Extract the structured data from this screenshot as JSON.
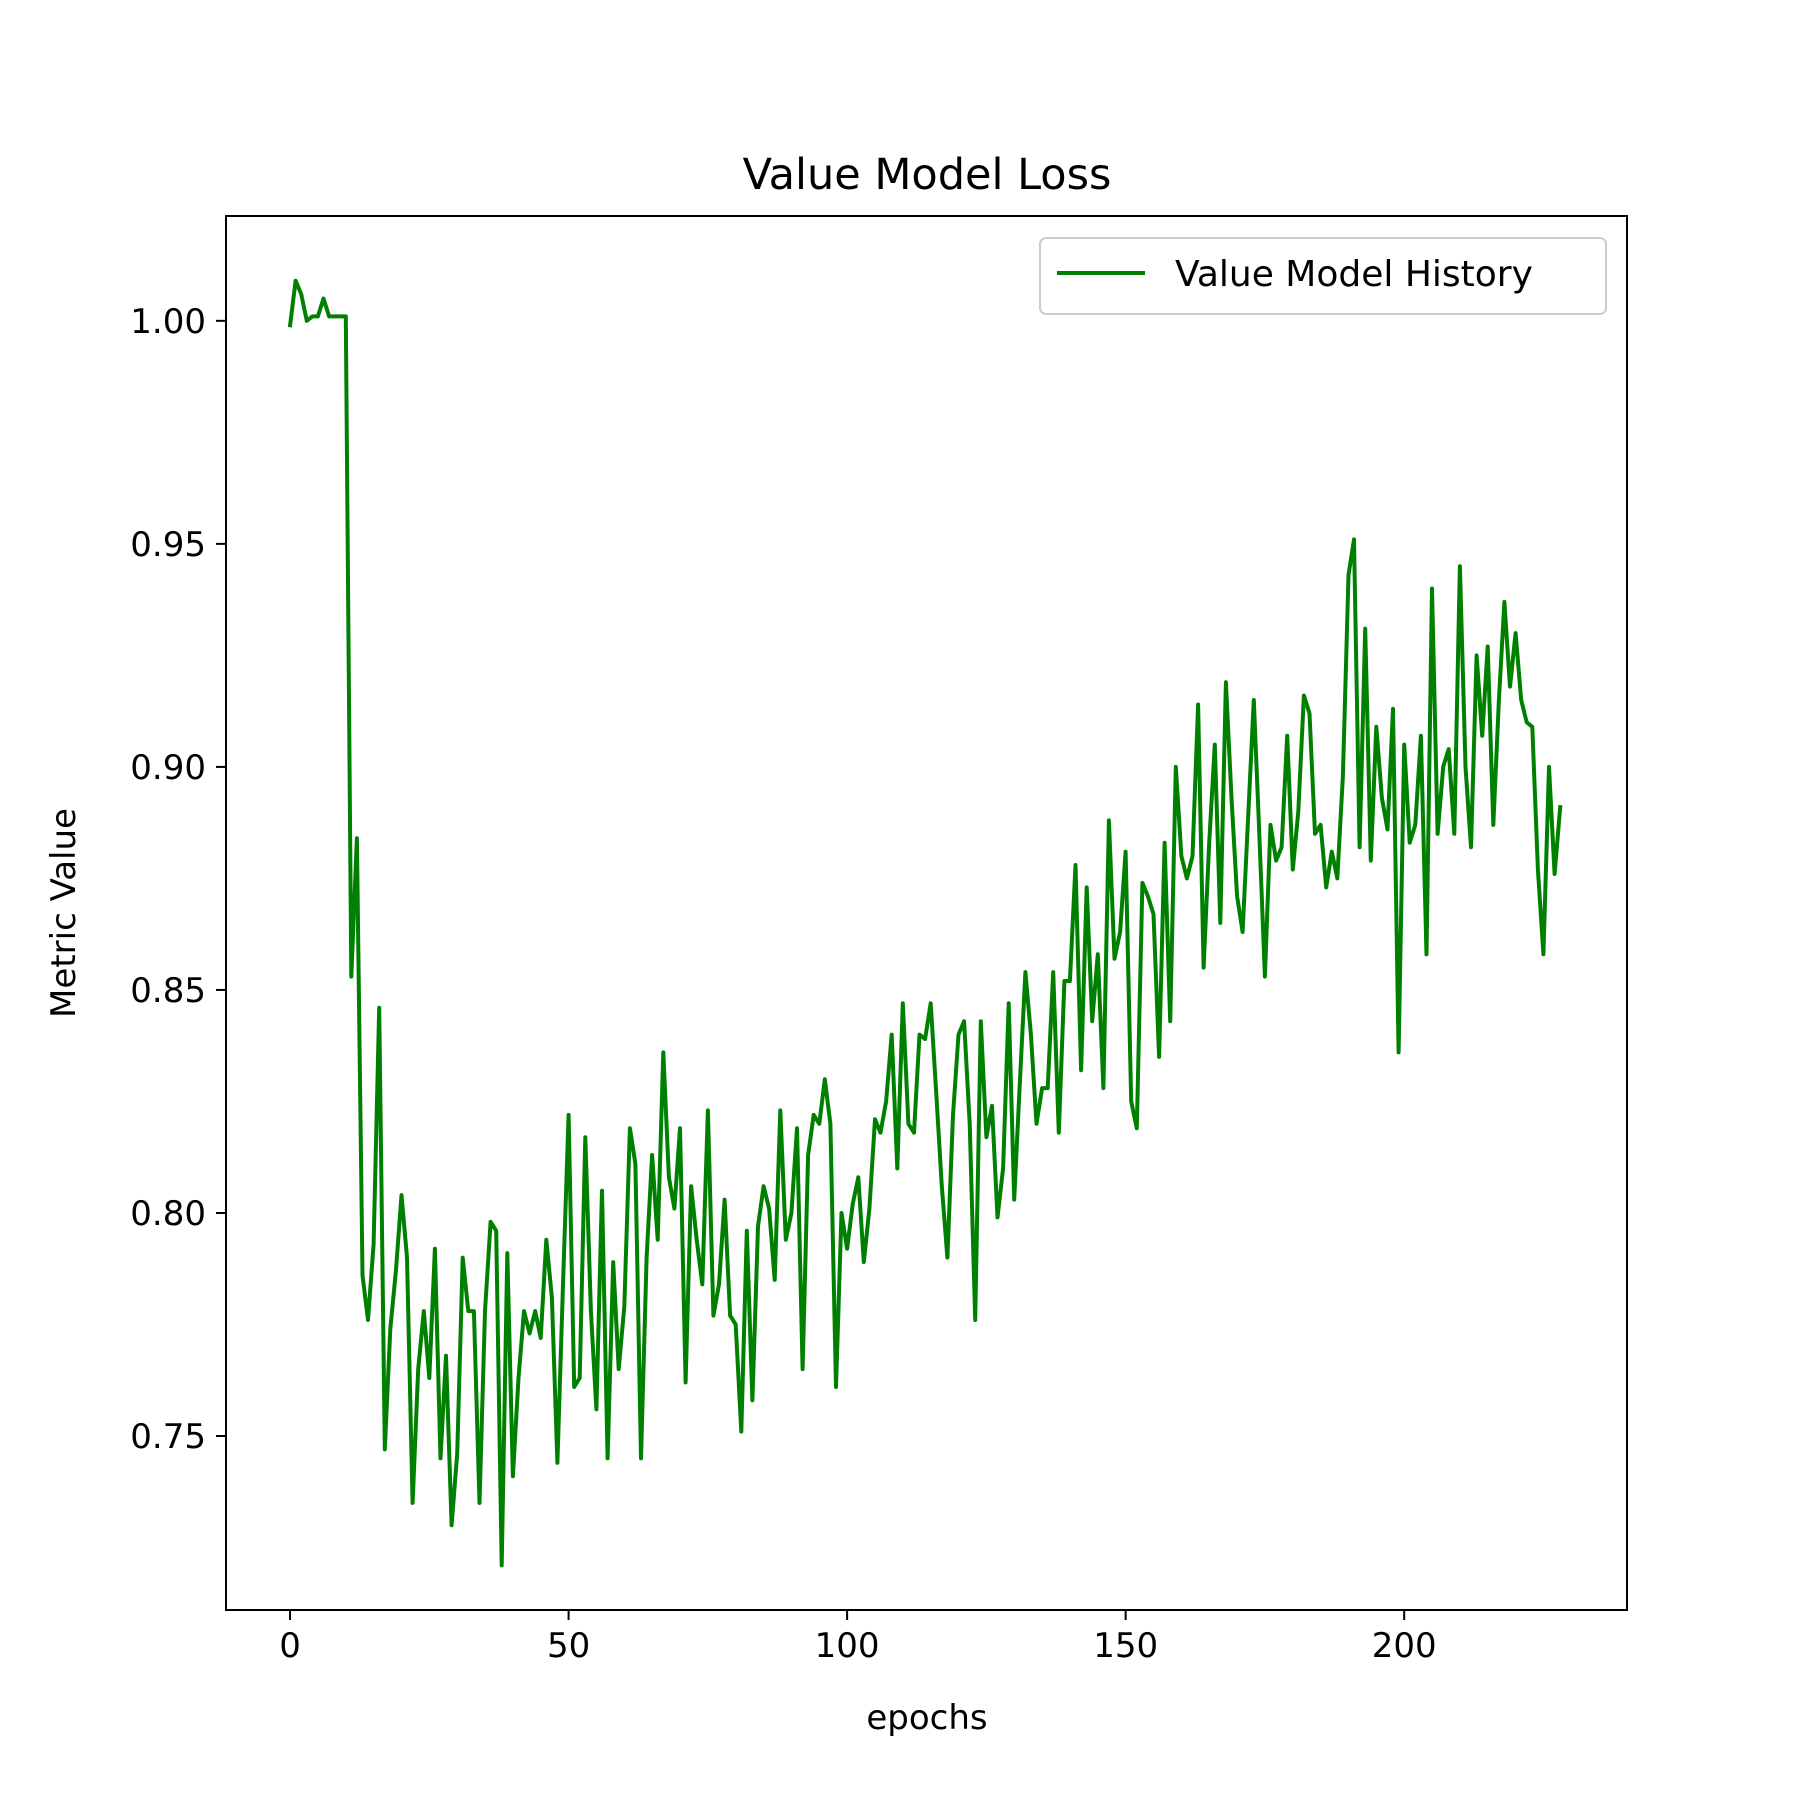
{
  "chart_data": {
    "type": "line",
    "title": "Value Model Loss",
    "xlabel": "epochs",
    "ylabel": "Metric Value",
    "xlim": [
      -11.5,
      240
    ],
    "ylim": [
      0.711,
      1.0235
    ],
    "xticks": [
      0,
      50,
      100,
      150,
      200
    ],
    "xtick_labels": [
      "0",
      "50",
      "100",
      "150",
      "200"
    ],
    "yticks": [
      0.75,
      0.8,
      0.85,
      0.9,
      0.95,
      1.0
    ],
    "ytick_labels": [
      "0.75",
      "0.80",
      "0.85",
      "0.90",
      "0.95",
      "1.00"
    ],
    "grid": false,
    "legend_position": "top-right",
    "series": [
      {
        "name": "Value Model History",
        "color": "#008000",
        "x": [
          0,
          1,
          2,
          3,
          4,
          5,
          6,
          7,
          8,
          9,
          10,
          11,
          12,
          13,
          14,
          15,
          16,
          17,
          18,
          19,
          20,
          21,
          22,
          23,
          24,
          25,
          26,
          27,
          28,
          29,
          30,
          31,
          32,
          33,
          34,
          35,
          36,
          37,
          38,
          39,
          40,
          41,
          42,
          43,
          44,
          45,
          46,
          47,
          48,
          49,
          50,
          51,
          52,
          53,
          54,
          55,
          56,
          57,
          58,
          59,
          60,
          61,
          62,
          63,
          64,
          65,
          66,
          67,
          68,
          69,
          70,
          71,
          72,
          73,
          74,
          75,
          76,
          77,
          78,
          79,
          80,
          81,
          82,
          83,
          84,
          85,
          86,
          87,
          88,
          89,
          90,
          91,
          92,
          93,
          94,
          95,
          96,
          97,
          98,
          99,
          100,
          101,
          102,
          103,
          104,
          105,
          106,
          107,
          108,
          109,
          110,
          111,
          112,
          113,
          114,
          115,
          116,
          117,
          118,
          119,
          120,
          121,
          122,
          123,
          124,
          125,
          126,
          127,
          128,
          129,
          130,
          131,
          132,
          133,
          134,
          135,
          136,
          137,
          138,
          139,
          140,
          141,
          142,
          143,
          144,
          145,
          146,
          147,
          148,
          149,
          150,
          151,
          152,
          153,
          154,
          155,
          156,
          157,
          158,
          159,
          160,
          161,
          162,
          163,
          164,
          165,
          166,
          167,
          168,
          169,
          170,
          171,
          172,
          173,
          174,
          175,
          176,
          177,
          178,
          179,
          180,
          181,
          182,
          183,
          184,
          185,
          186,
          187,
          188,
          189,
          190,
          191,
          192,
          193,
          194,
          195,
          196,
          197,
          198,
          199,
          200,
          201,
          202,
          203,
          204,
          205,
          206,
          207,
          208,
          209,
          210,
          211,
          212,
          213,
          214,
          215,
          216,
          217,
          218,
          219,
          220,
          221,
          222,
          223,
          224,
          225,
          226,
          227,
          228
        ],
        "y": [
          0.999,
          1.009,
          1.006,
          1.0,
          1.001,
          1.001,
          1.005,
          1.001,
          1.001,
          1.001,
          1.001,
          0.853,
          0.884,
          0.786,
          0.776,
          0.793,
          0.846,
          0.747,
          0.774,
          0.787,
          0.804,
          0.79,
          0.735,
          0.765,
          0.778,
          0.763,
          0.792,
          0.745,
          0.768,
          0.73,
          0.746,
          0.79,
          0.778,
          0.778,
          0.735,
          0.778,
          0.798,
          0.796,
          0.721,
          0.791,
          0.741,
          0.763,
          0.778,
          0.773,
          0.778,
          0.772,
          0.794,
          0.781,
          0.744,
          0.784,
          0.822,
          0.761,
          0.763,
          0.817,
          0.778,
          0.756,
          0.805,
          0.745,
          0.789,
          0.765,
          0.779,
          0.819,
          0.811,
          0.745,
          0.79,
          0.813,
          0.794,
          0.836,
          0.808,
          0.801,
          0.819,
          0.762,
          0.806,
          0.794,
          0.784,
          0.823,
          0.777,
          0.784,
          0.803,
          0.777,
          0.775,
          0.751,
          0.796,
          0.758,
          0.797,
          0.806,
          0.801,
          0.785,
          0.823,
          0.794,
          0.8,
          0.819,
          0.765,
          0.813,
          0.822,
          0.82,
          0.83,
          0.82,
          0.761,
          0.8,
          0.792,
          0.802,
          0.808,
          0.789,
          0.801,
          0.821,
          0.818,
          0.825,
          0.84,
          0.81,
          0.847,
          0.82,
          0.818,
          0.84,
          0.839,
          0.847,
          0.827,
          0.806,
          0.79,
          0.822,
          0.84,
          0.843,
          0.82,
          0.776,
          0.843,
          0.817,
          0.824,
          0.799,
          0.81,
          0.847,
          0.803,
          0.829,
          0.854,
          0.84,
          0.82,
          0.828,
          0.828,
          0.854,
          0.818,
          0.852,
          0.852,
          0.878,
          0.832,
          0.873,
          0.843,
          0.858,
          0.828,
          0.888,
          0.857,
          0.863,
          0.881,
          0.825,
          0.819,
          0.874,
          0.871,
          0.867,
          0.835,
          0.883,
          0.843,
          0.9,
          0.88,
          0.875,
          0.88,
          0.914,
          0.855,
          0.883,
          0.905,
          0.865,
          0.919,
          0.893,
          0.871,
          0.863,
          0.889,
          0.915,
          0.885,
          0.853,
          0.887,
          0.879,
          0.882,
          0.907,
          0.877,
          0.89,
          0.916,
          0.912,
          0.885,
          0.887,
          0.873,
          0.881,
          0.875,
          0.898,
          0.943,
          0.951,
          0.882,
          0.931,
          0.879,
          0.909,
          0.893,
          0.886,
          0.913,
          0.836,
          0.905,
          0.883,
          0.887,
          0.907,
          0.858,
          0.94,
          0.885,
          0.9,
          0.904,
          0.885,
          0.945,
          0.9,
          0.882,
          0.925,
          0.907,
          0.927,
          0.887,
          0.915,
          0.937,
          0.918,
          0.93,
          0.915,
          0.91,
          0.909,
          0.877,
          0.858,
          0.9,
          0.876,
          0.891
        ]
      }
    ]
  }
}
